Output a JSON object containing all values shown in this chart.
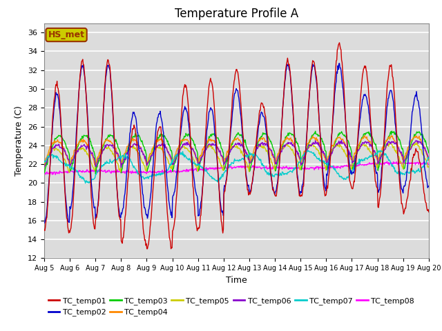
{
  "title": "Temperature Profile A",
  "xlabel": "Time",
  "ylabel": "Temperature (C)",
  "ylim": [
    12,
    37
  ],
  "yticks": [
    12,
    14,
    16,
    18,
    20,
    22,
    24,
    26,
    28,
    30,
    32,
    34,
    36
  ],
  "xticklabels": [
    "Aug 5",
    "Aug 6",
    "Aug 7",
    "Aug 8",
    "Aug 9",
    "Aug 10",
    "Aug 11",
    "Aug 12",
    "Aug 13",
    "Aug 14",
    "Aug 15",
    "Aug 16",
    "Aug 17",
    "Aug 18",
    "Aug 19",
    "Aug 20"
  ],
  "series_colors": {
    "TC_temp01": "#cc0000",
    "TC_temp02": "#0000cc",
    "TC_temp03": "#00cc00",
    "TC_temp04": "#ff8800",
    "TC_temp05": "#cccc00",
    "TC_temp06": "#8800cc",
    "TC_temp07": "#00cccc",
    "TC_temp08": "#ff00ff"
  },
  "legend_text": "HS_met",
  "legend_box_facecolor": "#cccc00",
  "legend_box_edgecolor": "#993300",
  "background_color": "#dcdcdc",
  "grid_color": "#ffffff",
  "title_fontsize": 12,
  "axis_fontsize": 9,
  "tick_fontsize": 8
}
